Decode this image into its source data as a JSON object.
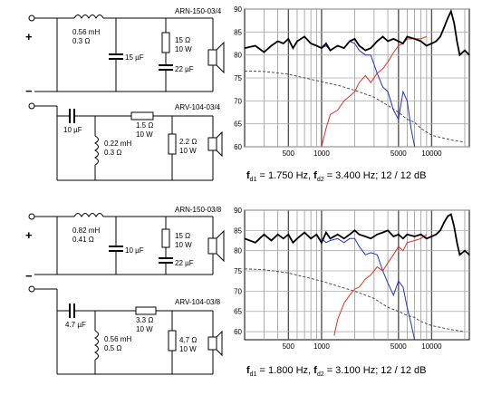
{
  "panels": [
    {
      "schematic": {
        "tweeter_model": "ARN-150-03/4",
        "woofer_model": "ARV-104-03/4",
        "plus_sign": "+",
        "minus_sign": "−",
        "L1_value": "0.56 mH",
        "L1_res": "0.3 Ω",
        "C_shunt": "15 µF",
        "R_att_val": "15 Ω",
        "R_att_pow": "10 W",
        "C_bypass": "22 µF",
        "C_series": "10 µF",
        "L2_value": "0.22 mH",
        "L2_res": "0.3 Ω",
        "R_series_val": "1.5 Ω",
        "R_series_pow": "10 W",
        "R_load_val": "2.2 Ω",
        "R_load_pow": "10 W"
      },
      "caption": {
        "f1_sym": "f",
        "f1_sub": "d1",
        "f1_val": " = 1.750 Hz, ",
        "f2_sym": "f",
        "f2_sub": "d2",
        "f2_val": " = 3.400 Hz; 12 / 12 dB"
      }
    },
    {
      "schematic": {
        "tweeter_model": "ARN-150-03/8",
        "woofer_model": "ARV-104-03/8",
        "plus_sign": "+",
        "minus_sign": "−",
        "L1_value": "0.82 mH",
        "L1_res": "0.41 Ω",
        "C_shunt": "10 µF",
        "R_att_val": "15 Ω",
        "R_att_pow": "10 W",
        "C_bypass": "22 µF",
        "C_series": "4.7 µF",
        "L2_value": "0.56 mH",
        "L2_res": "0.5 Ω",
        "R_series_val": "3.3 Ω",
        "R_series_pow": "10 W",
        "R_load_val": "4.7 Ω",
        "R_load_pow": "10 W"
      },
      "caption": {
        "f1_sym": "f",
        "f1_sub": "d1",
        "f1_val": " = 1.800 Hz, ",
        "f2_sym": "f",
        "f2_sub": "d2",
        "f2_val": " = 3.100 Hz; 12 / 12 dB"
      }
    }
  ],
  "chart_data": [
    {
      "type": "line",
      "x_scale": "log",
      "xlim": [
        200,
        22000
      ],
      "ylim": [
        60,
        90
      ],
      "x_tick_labels": [
        "500",
        "1000",
        "5000",
        "10000"
      ],
      "x_tick_values": [
        500,
        1000,
        5000,
        10000
      ],
      "y_tick_values": [
        60,
        65,
        70,
        75,
        80,
        85,
        90
      ],
      "grid": true,
      "colors": {
        "total": "#000000",
        "tweeter_section": "#e03020",
        "woofer_section": "#2030d0",
        "impedance": "#404040"
      },
      "series": [
        {
          "key": "total",
          "style": "solid-thick",
          "x": [
            200,
            250,
            300,
            350,
            400,
            450,
            500,
            550,
            600,
            700,
            800,
            900,
            1000,
            1100,
            1200,
            1400,
            1600,
            1800,
            2000,
            2200,
            2500,
            2800,
            3200,
            3600,
            4000,
            4500,
            5000,
            5500,
            6000,
            7000,
            8000,
            9000,
            10000,
            11000,
            12000,
            13000,
            14000,
            15000,
            16000,
            17000,
            18000,
            20000,
            22000
          ],
          "y": [
            81.5,
            82,
            80.6,
            82,
            83,
            82.5,
            83.5,
            81.5,
            83,
            84,
            82.5,
            82,
            81.5,
            82.5,
            81,
            82,
            81.5,
            83,
            83.5,
            82,
            81,
            81.5,
            83,
            84,
            83,
            83.5,
            83,
            82.5,
            84,
            83.5,
            83,
            82,
            82.5,
            83,
            84,
            86,
            88,
            89.5,
            87,
            83,
            80,
            81,
            80
          ]
        },
        {
          "key": "woofer_section",
          "style": "solid",
          "x": [
            1000,
            1100,
            1200,
            1400,
            1600,
            1800,
            2000,
            2200,
            2500,
            2800,
            3200,
            3600,
            4000,
            4500,
            5000,
            5500,
            6000,
            6500,
            7000
          ],
          "y": [
            81.5,
            82,
            81,
            82,
            81.5,
            83,
            82.5,
            81,
            80,
            80,
            76,
            73,
            72,
            68,
            66,
            72,
            70,
            64,
            60
          ]
        },
        {
          "key": "tweeter_section",
          "style": "solid",
          "x": [
            1000,
            1100,
            1200,
            1400,
            1600,
            1800,
            2000,
            2200,
            2500,
            2800,
            3200,
            3600,
            4000,
            4500,
            5000,
            5500,
            6000,
            7000,
            8000,
            9000
          ],
          "y": [
            60,
            64,
            67,
            68,
            70,
            71,
            72,
            74,
            75.5,
            74,
            76,
            77,
            78.5,
            80.5,
            82,
            82.5,
            83.5,
            83.5,
            83.5,
            84
          ]
        },
        {
          "key": "impedance",
          "style": "dashed",
          "x": [
            200,
            300,
            500,
            700,
            1000,
            1500,
            2000,
            3000,
            4000,
            5000,
            6000,
            7000,
            8000,
            10000,
            15000,
            20000
          ],
          "y": [
            76.5,
            76.4,
            75.8,
            75,
            74.2,
            73.2,
            72.3,
            70.8,
            69,
            67.5,
            66,
            65.3,
            64,
            62.5,
            61.5,
            61
          ]
        }
      ]
    },
    {
      "type": "line",
      "x_scale": "log",
      "xlim": [
        200,
        22000
      ],
      "ylim": [
        58,
        90
      ],
      "x_tick_labels": [
        "500",
        "1000",
        "5000",
        "10000"
      ],
      "x_tick_values": [
        500,
        1000,
        5000,
        10000
      ],
      "y_tick_values": [
        60,
        65,
        70,
        75,
        80,
        85,
        90
      ],
      "grid": true,
      "colors": {
        "total": "#000000",
        "tweeter_section": "#e03020",
        "woofer_section": "#2030d0",
        "impedance": "#404040"
      },
      "series": [
        {
          "key": "total",
          "style": "solid-thick",
          "x": [
            200,
            250,
            300,
            350,
            400,
            450,
            500,
            550,
            600,
            700,
            800,
            900,
            1000,
            1100,
            1200,
            1400,
            1600,
            1800,
            2000,
            2200,
            2500,
            2800,
            3200,
            3600,
            4000,
            4500,
            5000,
            5500,
            6000,
            7000,
            8000,
            9000,
            10000,
            11000,
            12000,
            13000,
            14000,
            15000,
            16000,
            17000,
            18000,
            20000,
            22000
          ],
          "y": [
            83,
            82,
            84,
            82.5,
            84,
            83,
            84,
            82,
            83,
            84.5,
            83,
            84,
            82,
            84.5,
            83,
            84,
            83,
            84,
            85,
            84,
            83.5,
            83,
            84,
            84.5,
            85,
            83.5,
            84,
            83,
            84,
            83.5,
            84,
            83,
            83.5,
            84,
            85,
            87,
            88.5,
            89,
            86,
            82,
            79,
            80,
            79
          ]
        },
        {
          "key": "woofer_section",
          "style": "solid",
          "x": [
            1000,
            1100,
            1200,
            1400,
            1600,
            1800,
            2000,
            2200,
            2500,
            2800,
            3200,
            3600,
            4000,
            4500,
            5000,
            5500,
            6000,
            6500,
            7000
          ],
          "y": [
            83,
            82,
            82.5,
            83,
            82,
            83,
            83,
            81,
            79,
            79.5,
            79,
            75,
            72,
            69,
            72.5,
            71,
            66,
            62,
            58
          ]
        },
        {
          "key": "tweeter_section",
          "style": "solid",
          "x": [
            1300,
            1400,
            1600,
            1800,
            2000,
            2200,
            2500,
            2800,
            3200,
            3600,
            4000,
            4500,
            5000,
            5500,
            6000,
            7000,
            8000,
            9000
          ],
          "y": [
            59,
            63,
            67,
            69,
            70.5,
            71,
            73,
            74,
            76,
            75,
            77,
            79,
            81,
            80,
            82,
            82.5,
            83,
            84
          ]
        },
        {
          "key": "impedance",
          "style": "dashed",
          "x": [
            200,
            300,
            500,
            700,
            1000,
            1500,
            2000,
            3000,
            4000,
            5000,
            6000,
            7000,
            8000,
            10000,
            15000,
            20000
          ],
          "y": [
            75.5,
            75.3,
            74.5,
            73.5,
            72.5,
            71,
            70,
            68.2,
            66,
            65,
            64,
            63.5,
            62.5,
            61.5,
            60.5,
            60
          ]
        }
      ]
    }
  ]
}
